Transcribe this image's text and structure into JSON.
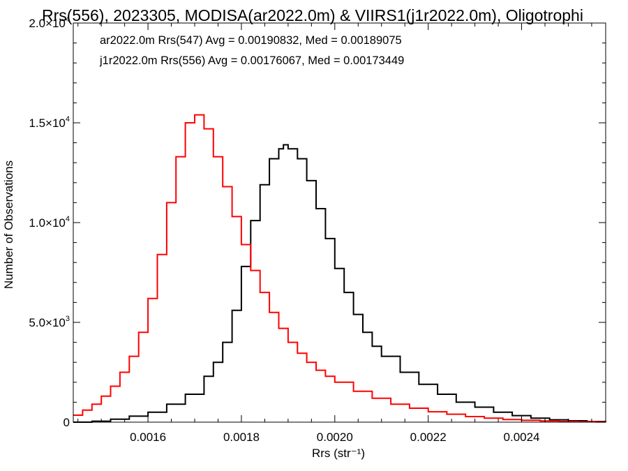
{
  "chart_data": {
    "type": "line",
    "title": "Rrs(556), 2023305, MODISA(ar2022.0m) & VIIRS1(j1r2022.0m), Oligotrophi",
    "xlabel": "Rrs (str⁻¹)",
    "ylabel": "Number of Observations",
    "xlim": [
      0.00144,
      0.00258
    ],
    "ylim": [
      0,
      20000
    ],
    "x_ticks": [
      0.0016,
      0.0018,
      0.002,
      0.0022,
      0.0024
    ],
    "x_tick_labels": [
      "0.0016",
      "0.0018",
      "0.0020",
      "0.0022",
      "0.0024"
    ],
    "y_ticks": [
      0,
      5000,
      10000,
      15000,
      20000
    ],
    "y_tick_labels": [
      {
        "mantissa": "0",
        "exponent": ""
      },
      {
        "mantissa": "5.0×10",
        "exponent": "3"
      },
      {
        "mantissa": "1.0×10",
        "exponent": "4"
      },
      {
        "mantissa": "1.5×10",
        "exponent": "4"
      },
      {
        "mantissa": "2.0×10",
        "exponent": "4"
      }
    ],
    "grid": false,
    "legend_placement": "top-left",
    "series": [
      {
        "label": "ar2022.0m Rrs(547) Avg = 0.00190832, Med = 0.00189075",
        "color": "#000000",
        "x": [
          0.00144,
          0.00148,
          0.00152,
          0.00156,
          0.0016,
          0.00164,
          0.00168,
          0.00172,
          0.00174,
          0.00176,
          0.00178,
          0.0018,
          0.00182,
          0.00184,
          0.00186,
          0.00188,
          0.00189,
          0.0019,
          0.00192,
          0.00194,
          0.00196,
          0.00198,
          0.002,
          0.00202,
          0.00204,
          0.00206,
          0.00208,
          0.0021,
          0.00214,
          0.00218,
          0.00222,
          0.00226,
          0.0023,
          0.00234,
          0.00238,
          0.00242,
          0.00246,
          0.0025,
          0.00254,
          0.00258
        ],
        "y": [
          0,
          50,
          150,
          300,
          500,
          900,
          1400,
          2300,
          3000,
          4000,
          5600,
          7800,
          10100,
          11900,
          13200,
          13700,
          13900,
          13700,
          13200,
          12100,
          10700,
          9200,
          7700,
          6500,
          5400,
          4500,
          3800,
          3300,
          2500,
          1900,
          1400,
          1000,
          750,
          500,
          330,
          200,
          120,
          70,
          30,
          10
        ]
      },
      {
        "label": "j1r2022.0m Rrs(556) Avg = 0.00176067, Med = 0.00173449",
        "color": "#ff0000",
        "x": [
          0.00144,
          0.00146,
          0.00148,
          0.0015,
          0.00152,
          0.00154,
          0.00156,
          0.00158,
          0.0016,
          0.00162,
          0.00164,
          0.00166,
          0.00168,
          0.0017,
          0.00172,
          0.00174,
          0.00176,
          0.00178,
          0.0018,
          0.00182,
          0.00184,
          0.00186,
          0.00188,
          0.0019,
          0.00192,
          0.00194,
          0.00196,
          0.00198,
          0.002,
          0.00204,
          0.00208,
          0.00212,
          0.00216,
          0.0022,
          0.00224,
          0.00228,
          0.00232,
          0.00236,
          0.0024,
          0.00244,
          0.00248,
          0.00252,
          0.00256,
          0.00258
        ],
        "y": [
          350,
          600,
          900,
          1300,
          1800,
          2500,
          3300,
          4500,
          6200,
          8400,
          11000,
          13300,
          15000,
          15400,
          14700,
          13300,
          11800,
          10300,
          8900,
          7600,
          6500,
          5500,
          4700,
          4000,
          3450,
          3000,
          2600,
          2300,
          2000,
          1550,
          1200,
          900,
          700,
          520,
          400,
          280,
          200,
          130,
          90,
          60,
          35,
          20,
          10,
          5
        ]
      }
    ]
  }
}
